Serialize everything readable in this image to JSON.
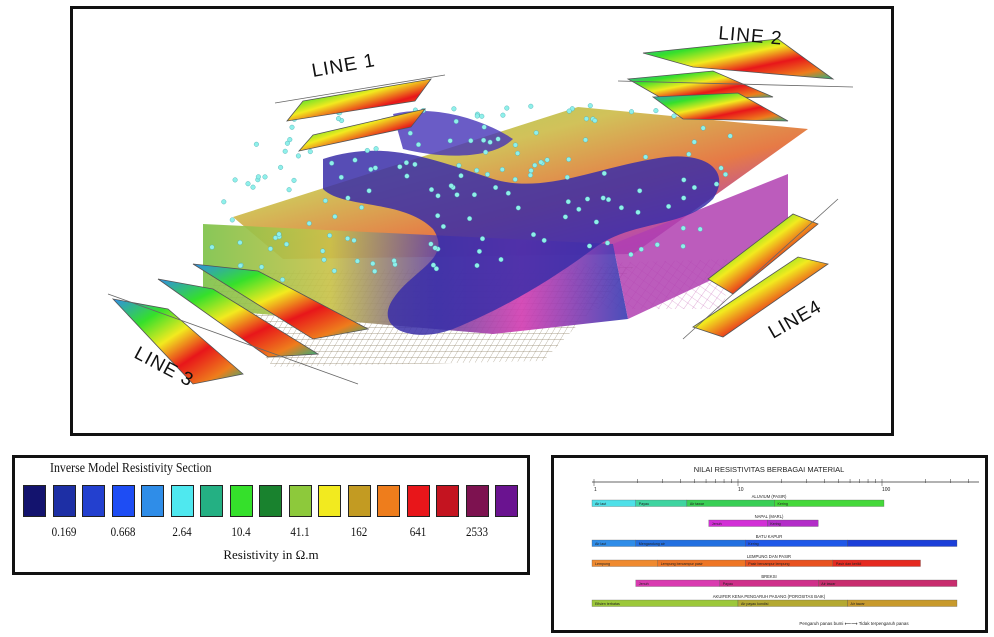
{
  "block_diagram": {
    "line_labels": [
      "LINE 1",
      "LINE 2",
      "LINE 3",
      "LINE4"
    ]
  },
  "legend": {
    "title": "Inverse Model Resistivity Section",
    "colors": [
      "#13136e",
      "#1d2fa5",
      "#2340cf",
      "#1e4df4",
      "#2f8de8",
      "#4fe8ef",
      "#24b083",
      "#35e02b",
      "#19822e",
      "#8dc93b",
      "#f2ea1f",
      "#c39b22",
      "#ee7d1c",
      "#e8161a",
      "#c41420",
      "#7d1250",
      "#6a1390"
    ],
    "ticks": [
      "0.169",
      "0.668",
      "2.64",
      "10.4",
      "41.1",
      "162",
      "641",
      "2533"
    ],
    "unit": "Resistivity in Ω.m"
  },
  "material_chart": {
    "title": "NILAI RESISTIVITAS BERBAGAI MATERIAL",
    "scale_labels": [
      "1",
      "10",
      "100"
    ],
    "rows": [
      {
        "heading": "ALUVIUM (PASIR)",
        "segments": [
          {
            "label": "Air laut",
            "start": 0.0,
            "end": 0.12,
            "color": "#4fe0e8"
          },
          {
            "label": "Payau",
            "start": 0.12,
            "end": 0.26,
            "color": "#3fd4a0"
          },
          {
            "label": "Air tawar",
            "start": 0.26,
            "end": 0.5,
            "color": "#39cf55"
          },
          {
            "label": "Kering",
            "start": 0.5,
            "end": 0.8,
            "color": "#45d83a"
          }
        ]
      },
      {
        "heading": "NAPAL (MARL)",
        "segments": [
          {
            "label": "Jenuh",
            "start": 0.32,
            "end": 0.48,
            "color": "#d22fd6"
          },
          {
            "label": "Kering",
            "start": 0.48,
            "end": 0.62,
            "color": "#b32dc8"
          }
        ]
      },
      {
        "heading": "BATU KAPUR",
        "segments": [
          {
            "label": "Air laut",
            "start": 0.0,
            "end": 0.12,
            "color": "#2f8de8"
          },
          {
            "label": "Mengandung air",
            "start": 0.12,
            "end": 0.42,
            "color": "#2370e0"
          },
          {
            "label": "Kering",
            "start": 0.42,
            "end": 0.7,
            "color": "#1f58e8"
          },
          {
            "label": "",
            "start": 0.7,
            "end": 1.0,
            "color": "#1c3fd8"
          }
        ]
      },
      {
        "heading": "LEMPUNG DAN PASIR",
        "segments": [
          {
            "label": "Lempung",
            "start": 0.0,
            "end": 0.18,
            "color": "#ef8a30"
          },
          {
            "label": "Lempung bercampur pasir",
            "start": 0.18,
            "end": 0.42,
            "color": "#ee7625"
          },
          {
            "label": "Pasir bercampur lempung",
            "start": 0.42,
            "end": 0.66,
            "color": "#e85220"
          },
          {
            "label": "Pasir dan kerikil",
            "start": 0.66,
            "end": 0.9,
            "color": "#e52a20"
          }
        ]
      },
      {
        "heading": "BREKSI",
        "segments": [
          {
            "label": "Jenuh",
            "start": 0.12,
            "end": 0.35,
            "color": "#d93bb0"
          },
          {
            "label": "Payau",
            "start": 0.35,
            "end": 0.62,
            "color": "#cf2f8a"
          },
          {
            "label": "Air tawar",
            "start": 0.62,
            "end": 1.0,
            "color": "#c82d6e"
          }
        ]
      },
      {
        "heading": "AKUIFER KENA PENGARUH PASANG (POROSITAS BAIK)",
        "segments": [
          {
            "label": "Efisien terbatas",
            "start": 0.0,
            "end": 0.4,
            "color": "#9cc83a"
          },
          {
            "label": "Air payau kondisi",
            "start": 0.4,
            "end": 0.7,
            "color": "#b4a932"
          },
          {
            "label": "Air tawar",
            "start": 0.7,
            "end": 1.0,
            "color": "#c89a2c"
          }
        ]
      }
    ],
    "footer": "Pengaruh panas bumi ⟵⟶ Tidak terpengaruh panas"
  }
}
